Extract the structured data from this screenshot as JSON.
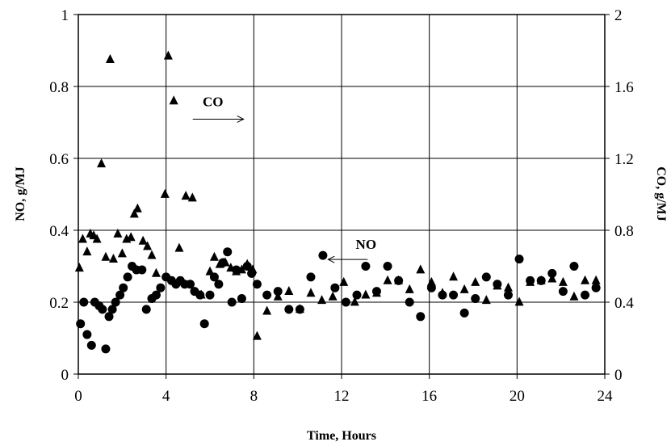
{
  "chart_data": {
    "type": "scatter",
    "title": "",
    "xlabel": "Time, Hours",
    "ylabel": "NO, g/MJ",
    "y2label": "CO, g/MJ",
    "xlim": [
      0,
      24
    ],
    "ylim": [
      0,
      1
    ],
    "y2lim": [
      0,
      2
    ],
    "xticks": [
      "0",
      "4",
      "8",
      "12",
      "16",
      "20",
      "24"
    ],
    "yticks": [
      "0",
      "0.2",
      "0.4",
      "0.6",
      "0.8",
      "1"
    ],
    "y2ticks": [
      "0",
      "0.4",
      "0.8",
      "1.2",
      "1.6",
      "2"
    ],
    "grid": true,
    "annotations": [
      {
        "text": "CO",
        "arrow": "right",
        "x": 5.4,
        "y2": 1.49
      },
      {
        "text": "NO",
        "arrow": "left",
        "x": 12.6,
        "y": 0.33
      }
    ],
    "series": [
      {
        "marker": "circle",
        "axis": "left",
        "points": [
          [
            0.1,
            0.14
          ],
          [
            0.25,
            0.2
          ],
          [
            0.4,
            0.11
          ],
          [
            0.6,
            0.08
          ],
          [
            0.75,
            0.2
          ],
          [
            0.95,
            0.19
          ],
          [
            1.1,
            0.18
          ],
          [
            1.25,
            0.07
          ],
          [
            1.4,
            0.16
          ],
          [
            1.55,
            0.18
          ],
          [
            1.7,
            0.2
          ],
          [
            1.9,
            0.22
          ],
          [
            2.05,
            0.24
          ],
          [
            2.25,
            0.27
          ],
          [
            2.45,
            0.3
          ],
          [
            2.65,
            0.29
          ],
          [
            2.9,
            0.29
          ],
          [
            3.1,
            0.18
          ],
          [
            3.35,
            0.21
          ],
          [
            3.55,
            0.22
          ],
          [
            3.75,
            0.24
          ],
          [
            4.0,
            0.27
          ],
          [
            4.25,
            0.26
          ],
          [
            4.45,
            0.25
          ],
          [
            4.65,
            0.26
          ],
          [
            4.85,
            0.25
          ],
          [
            5.1,
            0.25
          ],
          [
            5.3,
            0.23
          ],
          [
            5.55,
            0.22
          ],
          [
            5.75,
            0.14
          ],
          [
            6.0,
            0.22
          ],
          [
            6.2,
            0.27
          ],
          [
            6.4,
            0.25
          ],
          [
            6.6,
            0.31
          ],
          [
            6.8,
            0.34
          ],
          [
            7.0,
            0.2
          ],
          [
            7.2,
            0.29
          ],
          [
            7.45,
            0.21
          ],
          [
            7.7,
            0.3
          ],
          [
            7.9,
            0.28
          ],
          [
            8.15,
            0.25
          ],
          [
            8.6,
            0.22
          ],
          [
            9.1,
            0.23
          ],
          [
            9.6,
            0.18
          ],
          [
            10.1,
            0.18
          ],
          [
            10.6,
            0.27
          ],
          [
            11.15,
            0.33
          ],
          [
            11.7,
            0.24
          ],
          [
            12.2,
            0.2
          ],
          [
            12.7,
            0.22
          ],
          [
            13.1,
            0.3
          ],
          [
            13.6,
            0.23
          ],
          [
            14.1,
            0.3
          ],
          [
            14.6,
            0.26
          ],
          [
            15.1,
            0.2
          ],
          [
            15.6,
            0.16
          ],
          [
            16.1,
            0.24
          ],
          [
            16.6,
            0.22
          ],
          [
            17.1,
            0.22
          ],
          [
            17.6,
            0.17
          ],
          [
            18.1,
            0.21
          ],
          [
            18.6,
            0.27
          ],
          [
            19.1,
            0.25
          ],
          [
            19.6,
            0.22
          ],
          [
            20.1,
            0.32
          ],
          [
            20.6,
            0.26
          ],
          [
            21.1,
            0.26
          ],
          [
            21.6,
            0.28
          ],
          [
            22.1,
            0.23
          ],
          [
            22.6,
            0.3
          ],
          [
            23.1,
            0.22
          ],
          [
            23.6,
            0.24
          ]
        ]
      },
      {
        "marker": "triangle",
        "axis": "right",
        "points": [
          [
            0.05,
            0.59
          ],
          [
            0.2,
            0.75
          ],
          [
            0.4,
            0.68
          ],
          [
            0.55,
            0.78
          ],
          [
            0.7,
            0.77
          ],
          [
            0.85,
            0.75
          ],
          [
            1.05,
            1.17
          ],
          [
            1.25,
            0.65
          ],
          [
            1.45,
            1.75
          ],
          [
            1.6,
            0.64
          ],
          [
            1.8,
            0.78
          ],
          [
            2.0,
            0.67
          ],
          [
            2.2,
            0.75
          ],
          [
            2.4,
            0.76
          ],
          [
            2.55,
            0.89
          ],
          [
            2.7,
            0.92
          ],
          [
            2.95,
            0.74
          ],
          [
            3.15,
            0.71
          ],
          [
            3.35,
            0.66
          ],
          [
            3.55,
            0.56
          ],
          [
            3.95,
            1.0
          ],
          [
            4.1,
            1.77
          ],
          [
            4.35,
            1.52
          ],
          [
            4.6,
            0.7
          ],
          [
            4.9,
            0.99
          ],
          [
            5.2,
            0.98
          ],
          [
            5.6,
            0.44
          ],
          [
            6.0,
            0.57
          ],
          [
            6.2,
            0.65
          ],
          [
            6.45,
            0.61
          ],
          [
            6.7,
            0.62
          ],
          [
            6.95,
            0.59
          ],
          [
            7.2,
            0.57
          ],
          [
            7.45,
            0.58
          ],
          [
            7.7,
            0.61
          ],
          [
            7.95,
            0.58
          ],
          [
            8.15,
            0.21
          ],
          [
            8.6,
            0.35
          ],
          [
            9.1,
            0.43
          ],
          [
            9.6,
            0.46
          ],
          [
            10.1,
            0.36
          ],
          [
            10.6,
            0.45
          ],
          [
            11.1,
            0.41
          ],
          [
            11.6,
            0.43
          ],
          [
            12.1,
            0.51
          ],
          [
            12.6,
            0.4
          ],
          [
            13.1,
            0.44
          ],
          [
            13.6,
            0.45
          ],
          [
            14.1,
            0.52
          ],
          [
            14.6,
            0.52
          ],
          [
            15.1,
            0.47
          ],
          [
            15.6,
            0.58
          ],
          [
            16.1,
            0.51
          ],
          [
            16.6,
            0.45
          ],
          [
            17.1,
            0.54
          ],
          [
            17.6,
            0.47
          ],
          [
            18.1,
            0.51
          ],
          [
            18.6,
            0.41
          ],
          [
            19.1,
            0.49
          ],
          [
            19.6,
            0.48
          ],
          [
            20.1,
            0.4
          ],
          [
            20.6,
            0.51
          ],
          [
            21.1,
            0.52
          ],
          [
            21.6,
            0.53
          ],
          [
            22.1,
            0.51
          ],
          [
            22.6,
            0.43
          ],
          [
            23.1,
            0.52
          ],
          [
            23.6,
            0.52
          ]
        ]
      }
    ]
  }
}
